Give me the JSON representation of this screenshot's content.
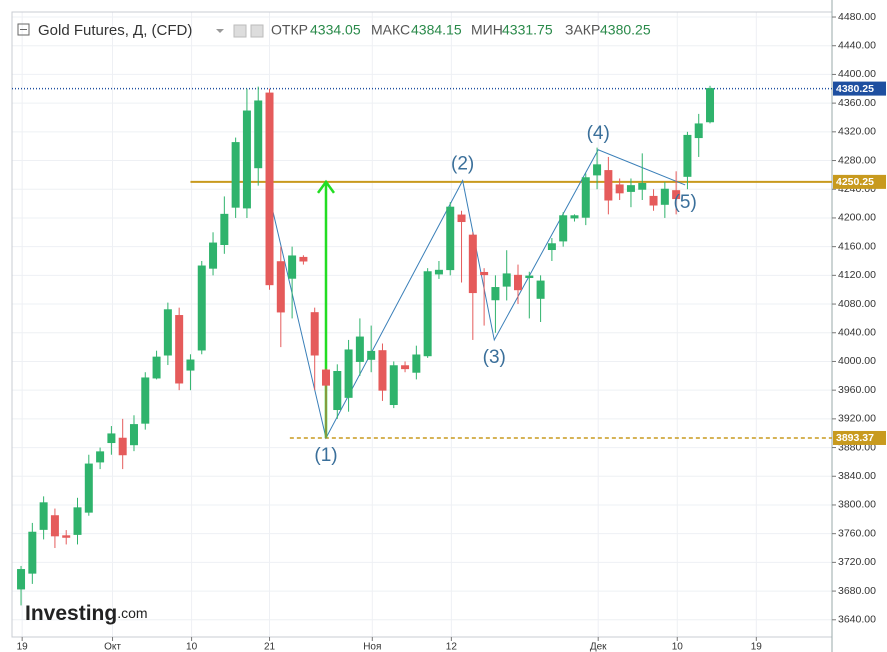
{
  "chart_data": {
    "type": "candlestick",
    "title": "Gold Futures, Д, (CFD)",
    "header_labels": [
      "ОТКР",
      "МАКС",
      "МИН",
      "ЗАКР"
    ],
    "open": [
      3683,
      3705,
      3766,
      3785,
      3757,
      3759,
      3790,
      3860,
      3887,
      3893,
      3884,
      3914,
      3977,
      4009,
      4064,
      3988,
      4016,
      4130,
      4163,
      4215,
      4214,
      4270,
      4374,
      4139,
      4116,
      4145,
      4068,
      3988,
      3933,
      3950,
      4000,
      4003,
      4015,
      3940,
      3994,
      3985,
      4008,
      4122,
      4128,
      4204,
      4176,
      4124,
      4086,
      4105,
      4120,
      4117,
      4088,
      4156,
      4168,
      4200,
      4201,
      4260,
      4266,
      4246,
      4237,
      4240,
      4230,
      4219,
      4238,
      4258,
      4312,
      4334.05
    ],
    "high": [
      3715,
      3775,
      3812,
      3795,
      3765,
      3810,
      3870,
      3880,
      3910,
      3920,
      3925,
      3985,
      4015,
      4082,
      4075,
      4010,
      4140,
      4180,
      4230,
      4312,
      4380,
      4383,
      4380,
      4160,
      4160,
      4148,
      4075,
      3990,
      3996,
      4030,
      4060,
      4050,
      4025,
      4000,
      4000,
      4022,
      4130,
      4140,
      4222,
      4210,
      4180,
      4130,
      4120,
      4155,
      4135,
      4125,
      4120,
      4172,
      4208,
      4205,
      4262,
      4298,
      4285,
      4255,
      4255,
      4290,
      4240,
      4250,
      4265,
      4320,
      4345,
      4384.15
    ],
    "low": [
      3660,
      3690,
      3752,
      3740,
      3745,
      3745,
      3785,
      3850,
      3870,
      3850,
      3875,
      3905,
      3975,
      3995,
      3960,
      3960,
      4010,
      4120,
      4150,
      4200,
      4200,
      4245,
      4100,
      4020,
      4060,
      4135,
      3960,
      3893.37,
      3920,
      3930,
      3980,
      3985,
      3945,
      3935,
      3985,
      3975,
      4005,
      4115,
      4120,
      4110,
      4030,
      4050,
      4040,
      4085,
      4080,
      4060,
      4055,
      4140,
      4160,
      4195,
      4190,
      4240,
      4205,
      4225,
      4215,
      4225,
      4210,
      4200,
      4205,
      4240,
      4285,
      4331.75
    ],
    "close": [
      3710,
      3762,
      3803,
      3757,
      3755,
      3796,
      3857,
      3874,
      3899,
      3870,
      3912,
      3977,
      4006,
      4072,
      3970,
      4002,
      4133,
      4165,
      4205,
      4305,
      4349,
      4363,
      4107,
      4069,
      4147,
      4140,
      4009,
      3967,
      3986,
      4016,
      4034,
      4014,
      3960,
      3994,
      3990,
      4009,
      4125,
      4127,
      4215,
      4195,
      4096,
      4121,
      4103,
      4122,
      4100,
      4119,
      4112,
      4164,
      4203,
      4203,
      4256,
      4274,
      4225,
      4235,
      4245,
      4248,
      4218,
      4240,
      4227,
      4315,
      4331,
      4380.25
    ],
    "up_color": "#2fb36c",
    "down_color": "#e55b5b",
    "xlim": [
      -0.8,
      71.8
    ],
    "xticks": [
      {
        "value": 0.1,
        "label": "19"
      },
      {
        "value": 8.1,
        "label": "Окт"
      },
      {
        "value": 15.1,
        "label": "10"
      },
      {
        "value": 22,
        "label": "21"
      },
      {
        "value": 31.1,
        "label": "Ноя"
      },
      {
        "value": 38.1,
        "label": "12"
      },
      {
        "value": 51.1,
        "label": "Дек"
      },
      {
        "value": 58.1,
        "label": "10"
      },
      {
        "value": 65.1,
        "label": "19"
      }
    ],
    "ylim": [
      3616,
      4487
    ],
    "yticks": [
      {
        "value": 3640,
        "label": "3640.00"
      },
      {
        "value": 3680,
        "label": "3680.00"
      },
      {
        "value": 3720,
        "label": "3720.00"
      },
      {
        "value": 3760,
        "label": "3760.00"
      },
      {
        "value": 3800,
        "label": "3800.00"
      },
      {
        "value": 3840,
        "label": "3840.00"
      },
      {
        "value": 3880,
        "label": "3880.00"
      },
      {
        "value": 3920,
        "label": "3920.00"
      },
      {
        "value": 3960,
        "label": "3960.00"
      },
      {
        "value": 4000,
        "label": "4000.00"
      },
      {
        "value": 4040,
        "label": "4040.00"
      },
      {
        "value": 4080,
        "label": "4080.00"
      },
      {
        "value": 4120,
        "label": "4120.00"
      },
      {
        "value": 4160,
        "label": "4160.00"
      },
      {
        "value": 4200,
        "label": "4200.00"
      },
      {
        "value": 4240,
        "label": "4240.00"
      },
      {
        "value": 4280,
        "label": "4280.00"
      },
      {
        "value": 4320,
        "label": "4320.00"
      },
      {
        "value": 4360,
        "label": "4360.00"
      },
      {
        "value": 4400,
        "label": "4400.00"
      },
      {
        "value": 4440,
        "label": "4440.00"
      },
      {
        "value": 4480,
        "label": "4480.00"
      }
    ],
    "grid": true,
    "hlines": [
      {
        "value": 4380.25,
        "color": "#1e4fa0",
        "style": "dotted",
        "from_x": -0.8
      },
      {
        "value": 4250.25,
        "color": "#c89a1e",
        "style": "solid",
        "from_x": 15
      },
      {
        "value": 3893.37,
        "color": "#c89a1e",
        "style": "dashed",
        "from_x": 23.8
      }
    ],
    "zigzag": {
      "color": "#3a7fb8",
      "x": [
        21.9,
        27,
        39.1,
        41.9,
        51.1,
        58.8
      ],
      "values": [
        4236,
        3893.37,
        4252,
        4030,
        4295,
        4246
      ]
    },
    "wave_labels": [
      "(1)",
      "(2)",
      "(3)",
      "(4)",
      "(5)"
    ],
    "arrow": {
      "x": 27,
      "from": 3893.37,
      "to": 4250.25,
      "color": "#22dd22"
    },
    "logo": [
      "Investing",
      ".com"
    ]
  }
}
